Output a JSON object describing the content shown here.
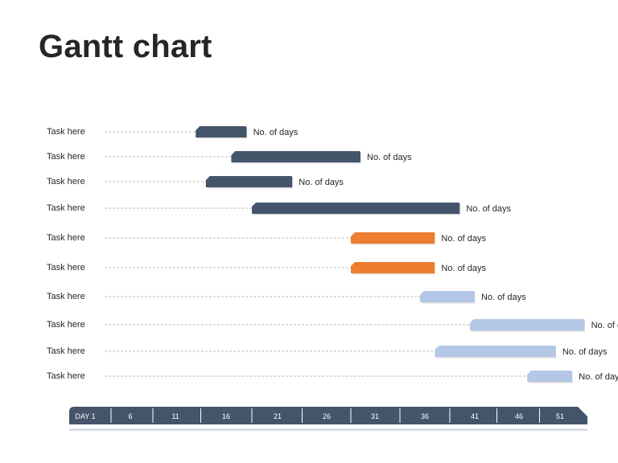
{
  "slide": {
    "title": "Gantt chart"
  },
  "chart_data": {
    "type": "gantt",
    "title": "Gantt chart",
    "x_axis": {
      "ticks": [
        "DAY 1",
        "6",
        "11",
        "16",
        "21",
        "26",
        "31",
        "36",
        "41",
        "46",
        "51"
      ]
    },
    "colors": {
      "dark": "#44546a",
      "orange": "#ed7d31",
      "light": "#b4c7e7",
      "axis": "#44546a",
      "axis_shadow": "#d6dce5",
      "leader": "#a6a6a6"
    },
    "tasks": [
      {
        "label": "Task here",
        "start": 13,
        "end": 18,
        "value_label": "No. of days",
        "color": "dark"
      },
      {
        "label": "Task here",
        "start": 16.5,
        "end": 29.5,
        "value_label": "No. of days",
        "color": "dark"
      },
      {
        "label": "Task here",
        "start": 14,
        "end": 22.5,
        "value_label": "No. of days",
        "color": "dark"
      },
      {
        "label": "Task here",
        "start": 18.5,
        "end": 39.5,
        "value_label": "No. of days",
        "color": "dark"
      },
      {
        "label": "Task here",
        "start": 28.5,
        "end": 37,
        "value_label": "No. of days",
        "color": "orange"
      },
      {
        "label": "Task here",
        "start": 28.5,
        "end": 37,
        "value_label": "No. of days",
        "color": "orange"
      },
      {
        "label": "Task here",
        "start": 35.5,
        "end": 41,
        "value_label": "No. of days",
        "color": "light"
      },
      {
        "label": "Task here",
        "start": 40.5,
        "end": 54,
        "value_label": "No. of days",
        "color": "light"
      },
      {
        "label": "Task here",
        "start": 37,
        "end": 50.5,
        "value_label": "No. of days",
        "color": "light"
      },
      {
        "label": "Task here",
        "start": 47,
        "end": 52.5,
        "value_label": "No. of days",
        "color": "light"
      }
    ]
  }
}
